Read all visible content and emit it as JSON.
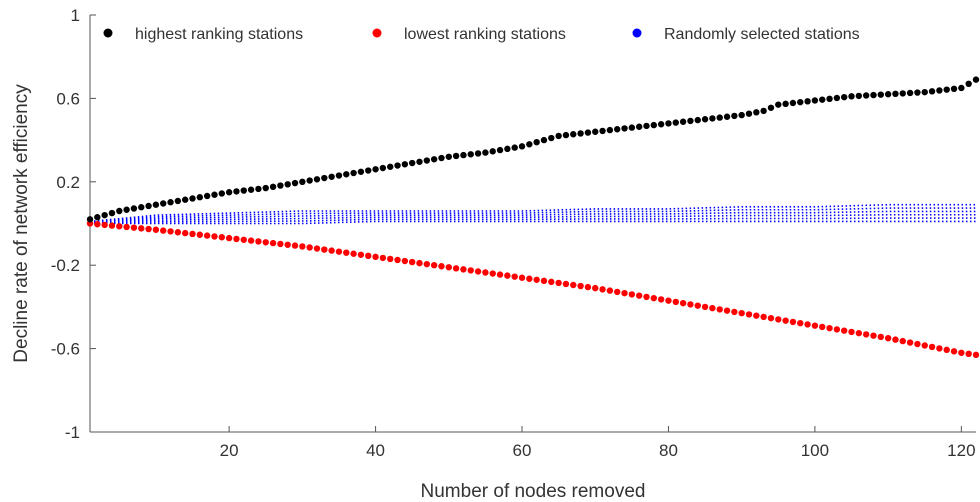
{
  "chart_data": {
    "type": "scatter",
    "xlabel": "Number of nodes removed",
    "ylabel": "Decline rate of network efficiency",
    "xlim": [
      1,
      122
    ],
    "ylim": [
      -1,
      1
    ],
    "xticks": [
      20,
      40,
      60,
      80,
      100,
      120
    ],
    "yticks": [
      "-1",
      "-0.6",
      "-0.2",
      "0.2",
      "0.6",
      "1"
    ],
    "grid": false,
    "legend_position": "top",
    "series": [
      {
        "name": "highest ranking stations",
        "color": "#000000",
        "x": [
          1,
          5,
          10,
          15,
          20,
          25,
          30,
          35,
          40,
          45,
          50,
          55,
          60,
          63,
          65,
          70,
          75,
          80,
          85,
          90,
          93,
          95,
          100,
          105,
          110,
          115,
          120,
          122
        ],
        "y": [
          0.02,
          0.06,
          0.09,
          0.12,
          0.15,
          0.17,
          0.2,
          0.23,
          0.26,
          0.29,
          0.32,
          0.34,
          0.37,
          0.4,
          0.42,
          0.44,
          0.46,
          0.48,
          0.5,
          0.52,
          0.54,
          0.57,
          0.59,
          0.61,
          0.62,
          0.63,
          0.65,
          0.69
        ]
      },
      {
        "name": "lowest ranking stations",
        "color": "#ff0000",
        "x": [
          1,
          10,
          20,
          30,
          40,
          50,
          60,
          70,
          80,
          90,
          100,
          110,
          120,
          122
        ],
        "y": [
          0.0,
          -0.03,
          -0.07,
          -0.11,
          -0.16,
          -0.21,
          -0.26,
          -0.31,
          -0.37,
          -0.43,
          -0.49,
          -0.55,
          -0.62,
          -0.63
        ]
      },
      {
        "name": "Randomly selected stations",
        "color": "#0000ff",
        "x": [
          1,
          10,
          20,
          30,
          40,
          50,
          60,
          70,
          80,
          90,
          100,
          110,
          122
        ],
        "y_low": [
          0.0,
          0.0,
          0.0,
          0.0,
          0.01,
          0.01,
          0.01,
          0.01,
          0.01,
          0.01,
          0.01,
          0.01,
          0.01
        ],
        "y_high": [
          0.01,
          0.04,
          0.05,
          0.06,
          0.06,
          0.06,
          0.06,
          0.07,
          0.07,
          0.08,
          0.08,
          0.09,
          0.09
        ]
      }
    ]
  }
}
